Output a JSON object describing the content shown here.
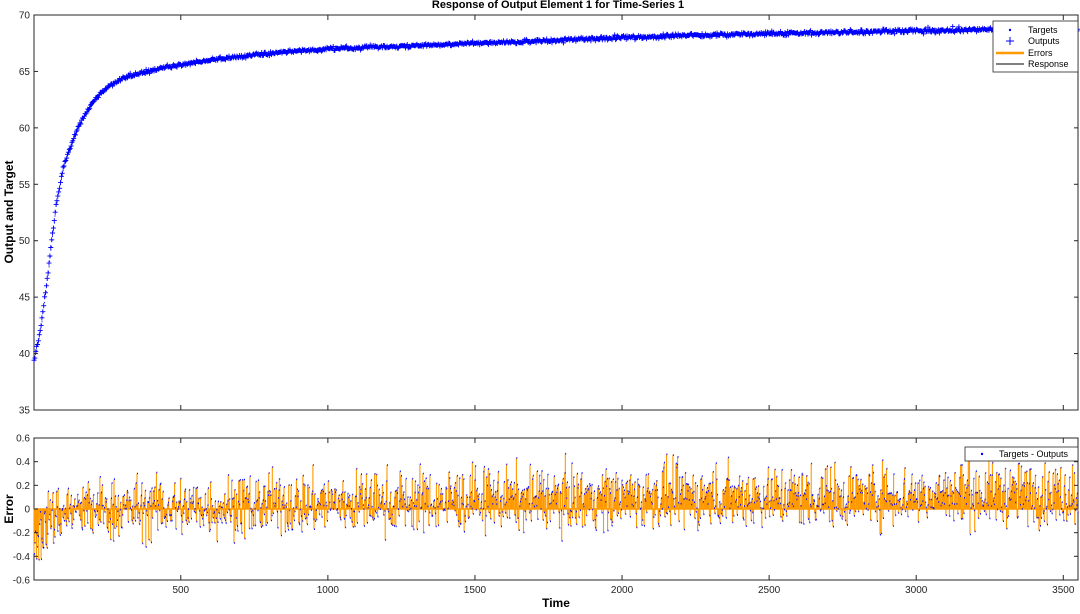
{
  "chart_data": [
    {
      "type": "line",
      "title": "Response of Output Element 1 for Time-Series 1",
      "ylabel": "Output and Target",
      "xlim": [
        1,
        3550
      ],
      "ylim": [
        35,
        70
      ],
      "xticks": [
        500,
        1000,
        1500,
        2000,
        2500,
        3000,
        3500
      ],
      "yticks": [
        35,
        40,
        45,
        50,
        55,
        60,
        65,
        70
      ],
      "legend_position": "top-right",
      "legend": [
        {
          "label": "Targets",
          "marker": "dot",
          "color": "#0000ff"
        },
        {
          "label": "Outputs",
          "marker": "plus",
          "color": "#0000ff"
        },
        {
          "label": "Errors",
          "marker": "line",
          "color": "#ff9900"
        },
        {
          "label": "Response",
          "marker": "line",
          "color": "#000000"
        }
      ],
      "series": [
        {
          "name": "Targets",
          "x": [
            1,
            25,
            50,
            75,
            100,
            150,
            200,
            250,
            300,
            350,
            400,
            500,
            600,
            700,
            800,
            900,
            1000,
            1200,
            1400,
            1600,
            1800,
            2000,
            2200,
            2400,
            2600,
            2800,
            3000,
            3200,
            3400,
            3550
          ],
          "y": [
            39.3,
            42.5,
            47.5,
            53.0,
            56.5,
            60.0,
            62.3,
            63.6,
            64.4,
            64.8,
            65.1,
            65.6,
            66.0,
            66.3,
            66.6,
            66.8,
            67.0,
            67.2,
            67.4,
            67.6,
            67.8,
            68.0,
            68.2,
            68.3,
            68.4,
            68.5,
            68.6,
            68.7,
            68.7,
            68.7
          ]
        }
      ]
    },
    {
      "type": "line",
      "ylabel": "Error",
      "xlabel": "Time",
      "xlim": [
        1,
        3550
      ],
      "ylim": [
        -0.6,
        0.6
      ],
      "xticks": [
        500,
        1000,
        1500,
        2000,
        2500,
        3000,
        3500
      ],
      "yticks": [
        -0.6,
        -0.4,
        -0.2,
        0,
        0.2,
        0.4,
        0.6
      ],
      "legend_position": "top-right",
      "legend": [
        {
          "label": "Targets - Outputs",
          "marker": "dot",
          "color": "#0000ff"
        }
      ],
      "series": [
        {
          "name": "Targets - Outputs",
          "trend_x": [
            1,
            50,
            100,
            300,
            600,
            1000,
            1500,
            2000,
            2500,
            3000,
            3550
          ],
          "trend_y": [
            -0.3,
            -0.1,
            -0.02,
            0.0,
            0.02,
            0.05,
            0.08,
            0.1,
            0.11,
            0.12,
            0.13
          ],
          "spread": 0.13,
          "peak_max": 0.5,
          "peak_min": -0.55
        }
      ]
    }
  ]
}
